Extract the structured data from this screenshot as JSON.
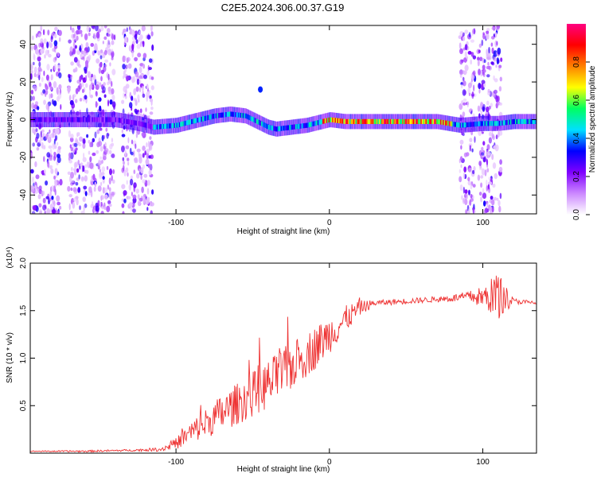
{
  "title": "C2E5.2024.306.00.37.G19",
  "colorbar": {
    "label": "Normalized spectral amplitude",
    "ticks": [
      "0.0",
      "0.2",
      "0.4",
      "0.6",
      "0.8"
    ],
    "tick_values": [
      0.0,
      0.2,
      0.4,
      0.6,
      0.8
    ],
    "range": [
      0,
      1
    ],
    "colors": [
      "#ffffff",
      "#cc88ff",
      "#8000ff",
      "#0000ff",
      "#00e0ff",
      "#00ff60",
      "#ffff00",
      "#ff8000",
      "#ff0000",
      "#ff0080"
    ]
  },
  "chart_data": [
    {
      "type": "heatmap",
      "title": "C2E5.2024.306.00.37.G19",
      "xlabel": "Height of straight line (km)",
      "ylabel": "Frequency (Hz)",
      "xlim": [
        -195,
        135
      ],
      "ylim": [
        -50,
        50
      ],
      "xticks": [
        -100,
        0,
        100
      ],
      "xtick_labels": [
        "-100",
        "0",
        "100"
      ],
      "yticks": [
        40,
        20,
        0,
        -20,
        -40
      ],
      "ytick_labels": [
        "40",
        "20",
        "0",
        "-20",
        "-40"
      ],
      "ridge": {
        "x": [
          -195,
          -180,
          -160,
          -140,
          -125,
          -115,
          -100,
          -85,
          -75,
          -65,
          -55,
          -45,
          -40,
          -35,
          -25,
          -15,
          -5,
          0,
          10,
          30,
          50,
          70,
          85,
          100,
          110,
          120,
          135
        ],
        "y": [
          0,
          0,
          0,
          0,
          -2,
          -4,
          -3,
          0,
          2,
          3,
          2,
          -2,
          -4,
          -5,
          -4,
          -3,
          -1,
          0,
          -1,
          -1,
          -1,
          -1,
          -3,
          -2,
          -2,
          -1,
          -1
        ]
      },
      "scatter_bands": [
        [
          -195,
          -175
        ],
        [
          -170,
          -140
        ],
        [
          -135,
          -115
        ],
        [
          85,
          95
        ],
        [
          97,
          112
        ]
      ],
      "spot": {
        "x": -45,
        "y": 16
      }
    },
    {
      "type": "line",
      "xlabel": "Height of straight line (km)",
      "ylabel": "SNR (10 * v/v)",
      "multiplier": "(x10⁴)",
      "xlim": [
        -195,
        135
      ],
      "ylim": [
        0,
        2.0
      ],
      "xticks": [
        -100,
        0,
        100
      ],
      "xtick_labels": [
        "-100",
        "0",
        "100"
      ],
      "yticks": [
        0.5,
        1.0,
        1.5,
        2.0
      ],
      "ytick_labels": [
        "0.5",
        "1.0",
        "1.5",
        "2.0"
      ],
      "color": "#ee3333",
      "series": [
        {
          "x": [
            -195,
            -160,
            -130,
            -110,
            -100,
            -90,
            -80,
            -70,
            -60,
            -50,
            -40,
            -30,
            -20,
            -10,
            0,
            10,
            20,
            30,
            40,
            50,
            60,
            70,
            80,
            90,
            100,
            110,
            120,
            135
          ],
          "y": [
            0.02,
            0.02,
            0.03,
            0.04,
            0.1,
            0.22,
            0.32,
            0.42,
            0.52,
            0.62,
            0.72,
            0.85,
            0.97,
            1.1,
            1.25,
            1.4,
            1.53,
            1.58,
            1.59,
            1.6,
            1.61,
            1.62,
            1.63,
            1.65,
            1.64,
            1.66,
            1.6,
            1.58
          ],
          "noise": [
            0.005,
            0.01,
            0.01,
            0.02,
            0.06,
            0.12,
            0.16,
            0.2,
            0.22,
            0.24,
            0.26,
            0.26,
            0.25,
            0.23,
            0.2,
            0.15,
            0.08,
            0.03,
            0.03,
            0.03,
            0.03,
            0.03,
            0.04,
            0.05,
            0.12,
            0.25,
            0.03,
            0.02
          ]
        }
      ]
    }
  ]
}
